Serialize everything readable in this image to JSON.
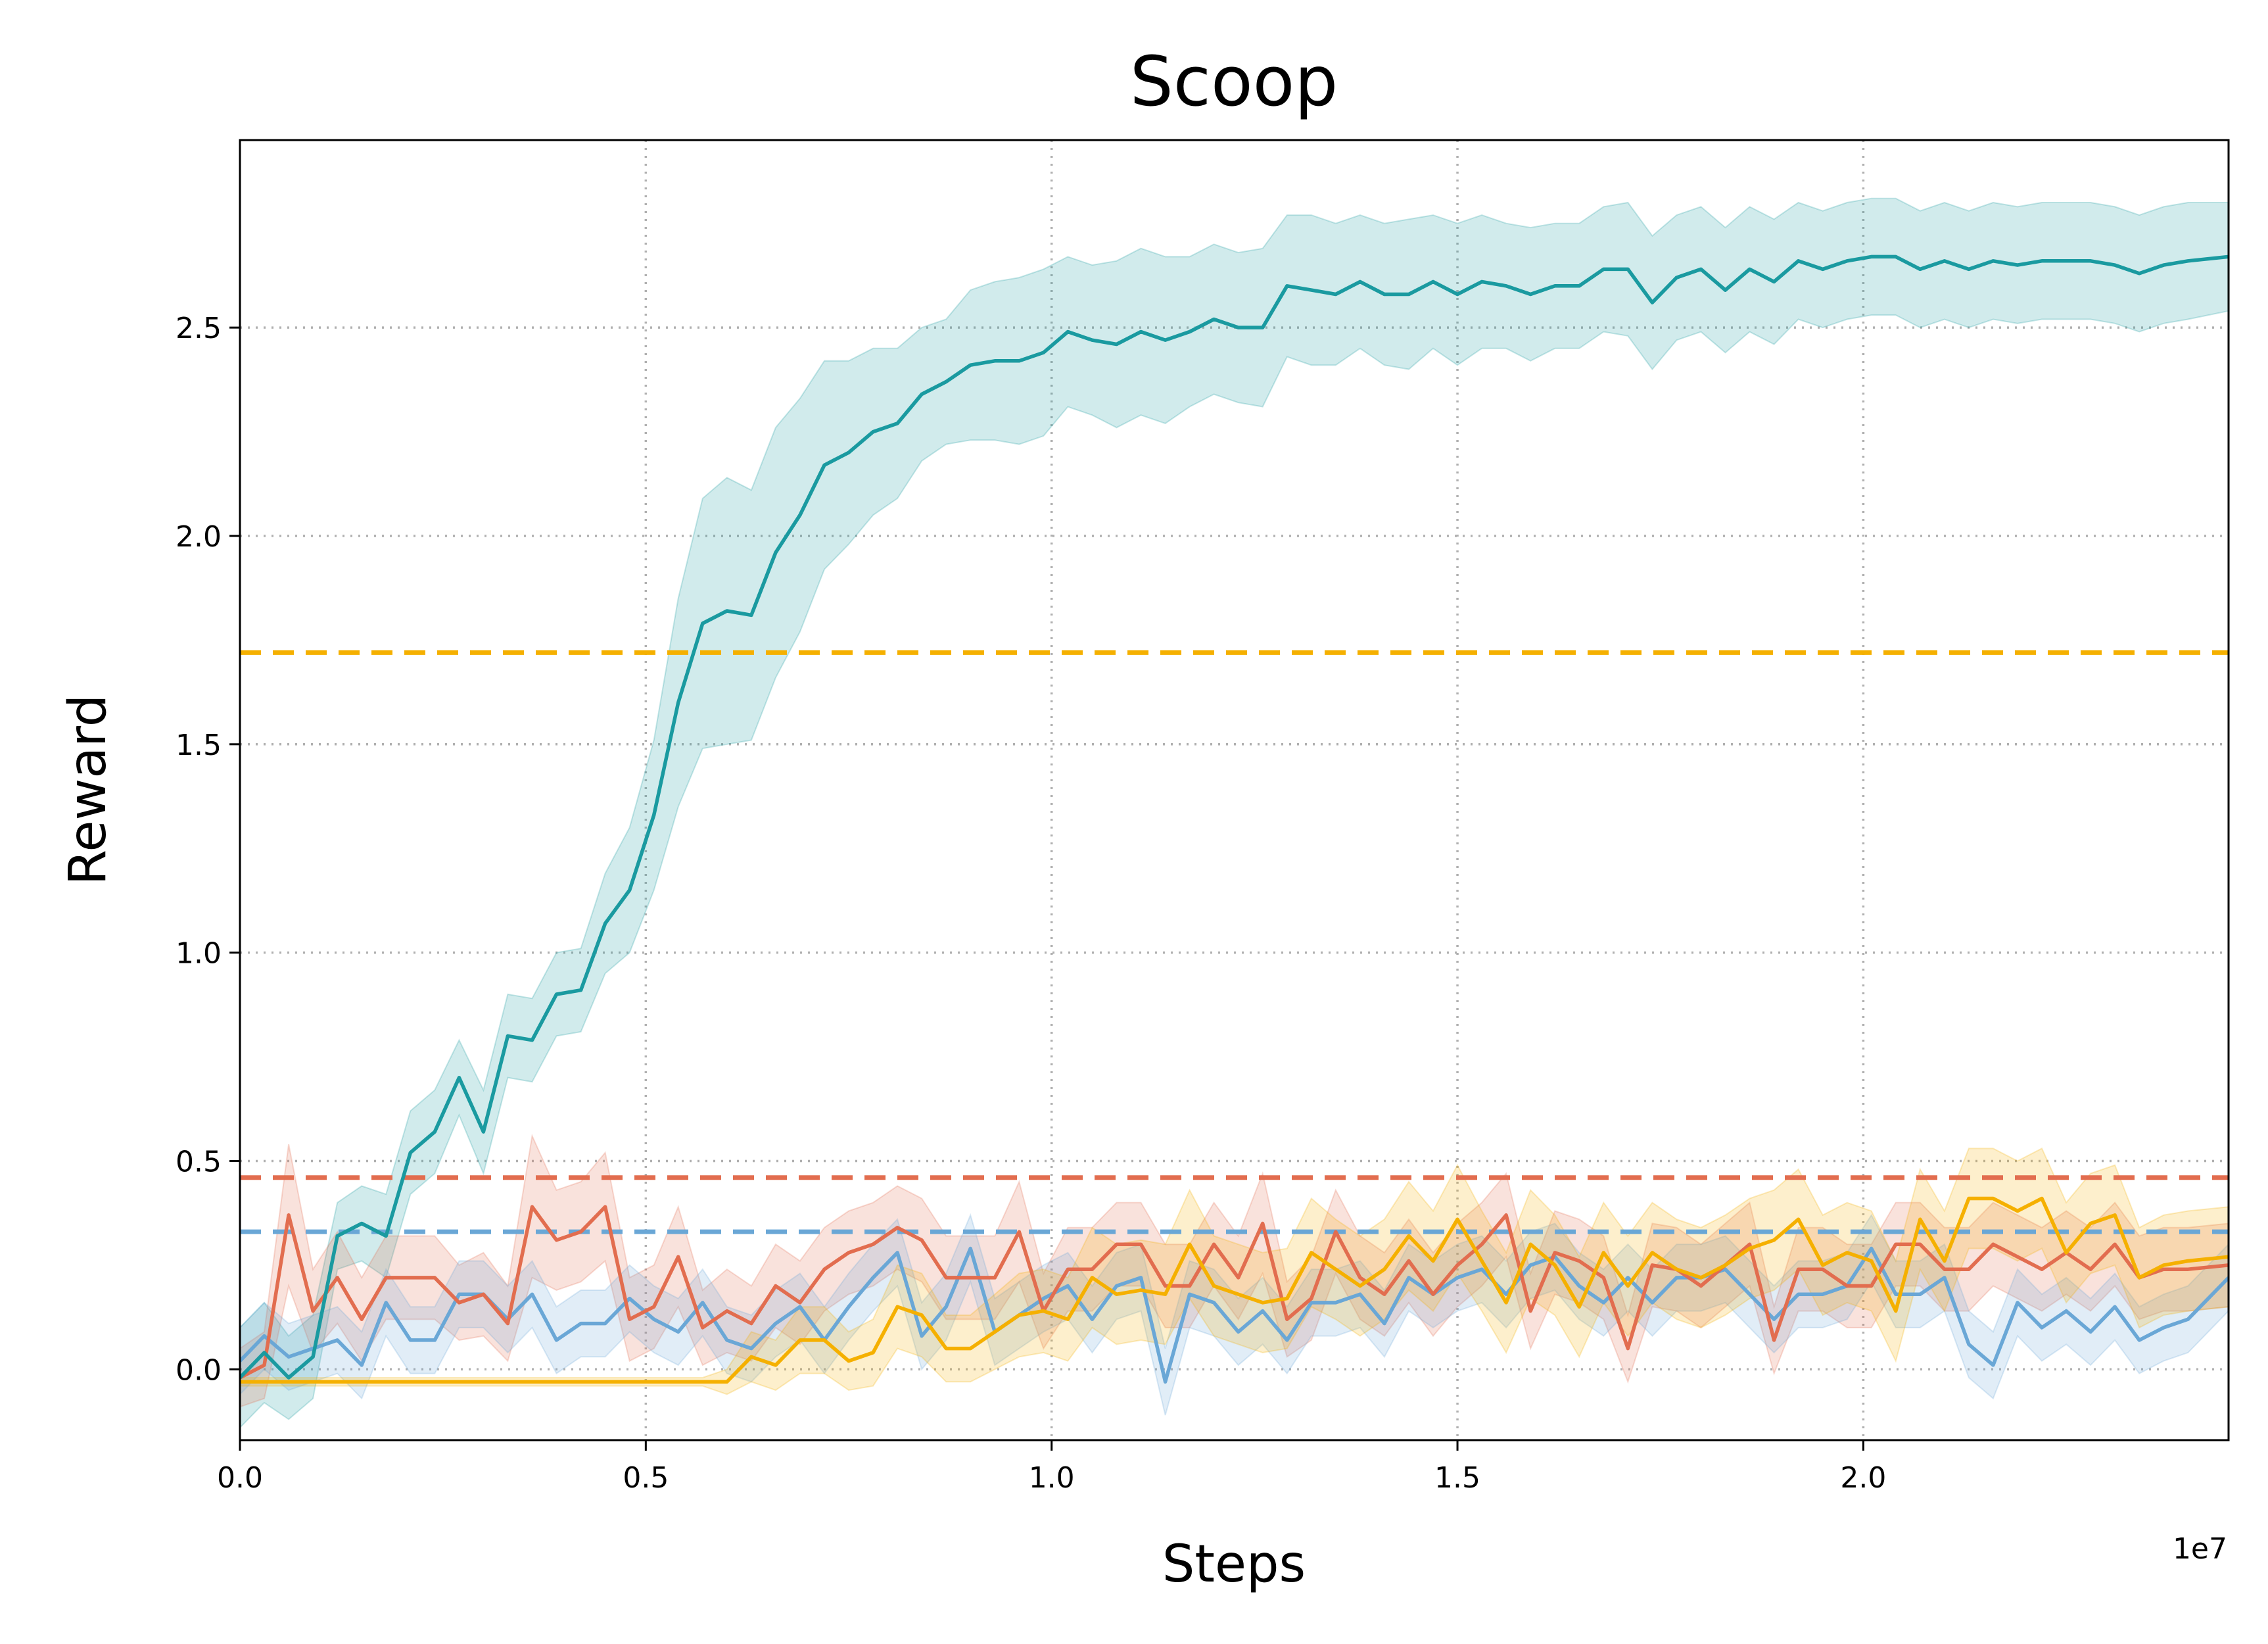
{
  "chart_data": {
    "type": "line",
    "title": "Scoop",
    "xlabel": "Steps",
    "ylabel": "Reward",
    "x_offset_label": "1e7",
    "xlim": [
      0,
      24500000
    ],
    "ylim": [
      -0.17,
      2.95
    ],
    "xticks": [
      0,
      5000000,
      10000000,
      15000000,
      20000000
    ],
    "xtick_labels": [
      "0.0",
      "0.5",
      "1.0",
      "1.5",
      "2.0"
    ],
    "yticks": [
      0.0,
      0.5,
      1.0,
      1.5,
      2.0,
      2.5
    ],
    "ytick_labels": [
      "0.0",
      "0.5",
      "1.0",
      "1.5",
      "2.0",
      "2.5"
    ],
    "grid": true,
    "x": [
      0,
      300000,
      600000,
      900000,
      1200000,
      1500000,
      1800000,
      2100000,
      2400000,
      2700000,
      3000000,
      3300000,
      3600000,
      3900000,
      4200000,
      4500000,
      4800000,
      5100000,
      5400000,
      5700000,
      6000000,
      6300000,
      6600000,
      6900000,
      7200000,
      7500000,
      7800000,
      8100000,
      8400000,
      8700000,
      9000000,
      9300000,
      9600000,
      9900000,
      10200000,
      10500000,
      10800000,
      11100000,
      11400000,
      11700000,
      12000000,
      12300000,
      12600000,
      12900000,
      13200000,
      13500000,
      13800000,
      14100000,
      14400000,
      14700000,
      15000000,
      15300000,
      15600000,
      15900000,
      16200000,
      16500000,
      16800000,
      17100000,
      17400000,
      17700000,
      18000000,
      18300000,
      18600000,
      18900000,
      19200000,
      19500000,
      19800000,
      20100000,
      20400000,
      20700000,
      21000000,
      21300000,
      21600000,
      21900000,
      22200000,
      22500000,
      22800000,
      23100000,
      23400000,
      23700000,
      24000000,
      24500000
    ],
    "series": [
      {
        "color": "#1a9aa0",
        "values": [
          -0.02,
          0.04,
          -0.02,
          0.03,
          0.32,
          0.35,
          0.32,
          0.52,
          0.57,
          0.7,
          0.57,
          0.8,
          0.79,
          0.9,
          0.91,
          1.07,
          1.15,
          1.33,
          1.6,
          1.79,
          1.82,
          1.81,
          1.96,
          2.05,
          2.17,
          2.2,
          2.25,
          2.27,
          2.34,
          2.37,
          2.41,
          2.42,
          2.42,
          2.44,
          2.49,
          2.47,
          2.46,
          2.49,
          2.47,
          2.49,
          2.52,
          2.5,
          2.5,
          2.6,
          2.59,
          2.58,
          2.61,
          2.58,
          2.58,
          2.61,
          2.58,
          2.61,
          2.6,
          2.58,
          2.6,
          2.6,
          2.64,
          2.64,
          2.56,
          2.62,
          2.64,
          2.59,
          2.64,
          2.61,
          2.66,
          2.64,
          2.66,
          2.67,
          2.67,
          2.64,
          2.66,
          2.64,
          2.66,
          2.65,
          2.66,
          2.66,
          2.66,
          2.65,
          2.63,
          2.65,
          2.66,
          2.67
        ],
        "band": [
          0.12,
          0.12,
          0.1,
          0.1,
          0.08,
          0.09,
          0.1,
          0.1,
          0.1,
          0.09,
          0.1,
          0.1,
          0.1,
          0.1,
          0.1,
          0.12,
          0.15,
          0.18,
          0.25,
          0.3,
          0.32,
          0.3,
          0.3,
          0.28,
          0.25,
          0.22,
          0.2,
          0.18,
          0.16,
          0.15,
          0.18,
          0.19,
          0.2,
          0.2,
          0.18,
          0.18,
          0.2,
          0.2,
          0.2,
          0.18,
          0.18,
          0.18,
          0.19,
          0.17,
          0.18,
          0.17,
          0.16,
          0.17,
          0.18,
          0.16,
          0.17,
          0.16,
          0.15,
          0.16,
          0.15,
          0.15,
          0.15,
          0.16,
          0.16,
          0.15,
          0.15,
          0.15,
          0.15,
          0.15,
          0.14,
          0.14,
          0.14,
          0.14,
          0.14,
          0.14,
          0.14,
          0.14,
          0.14,
          0.14,
          0.14,
          0.14,
          0.14,
          0.14,
          0.14,
          0.14,
          0.14,
          0.13
        ]
      },
      {
        "color": "#e26d4f",
        "values": [
          -0.02,
          0.01,
          0.37,
          0.14,
          0.22,
          0.12,
          0.22,
          0.22,
          0.22,
          0.16,
          0.18,
          0.11,
          0.39,
          0.31,
          0.33,
          0.39,
          0.12,
          0.15,
          0.27,
          0.1,
          0.14,
          0.11,
          0.2,
          0.16,
          0.24,
          0.28,
          0.3,
          0.34,
          0.31,
          0.22,
          0.22,
          0.22,
          0.33,
          0.14,
          0.24,
          0.24,
          0.3,
          0.3,
          0.2,
          0.2,
          0.3,
          0.22,
          0.35,
          0.12,
          0.17,
          0.33,
          0.22,
          0.18,
          0.26,
          0.18,
          0.25,
          0.3,
          0.37,
          0.14,
          0.28,
          0.26,
          0.22,
          0.05,
          0.25,
          0.24,
          0.2,
          0.25,
          0.3,
          0.07,
          0.24,
          0.24,
          0.2,
          0.2,
          0.3,
          0.3,
          0.24,
          0.24,
          0.3,
          0.27,
          0.24,
          0.28,
          0.24,
          0.3,
          0.22,
          0.24,
          0.24,
          0.25
        ],
        "band": [
          0.07,
          0.08,
          0.17,
          0.1,
          0.11,
          0.1,
          0.1,
          0.1,
          0.1,
          0.09,
          0.1,
          0.09,
          0.17,
          0.12,
          0.12,
          0.13,
          0.1,
          0.1,
          0.12,
          0.09,
          0.1,
          0.09,
          0.1,
          0.1,
          0.1,
          0.1,
          0.1,
          0.1,
          0.1,
          0.1,
          0.1,
          0.1,
          0.12,
          0.09,
          0.1,
          0.1,
          0.1,
          0.1,
          0.1,
          0.1,
          0.1,
          0.1,
          0.12,
          0.09,
          0.1,
          0.1,
          0.1,
          0.1,
          0.1,
          0.1,
          0.1,
          0.1,
          0.1,
          0.09,
          0.1,
          0.1,
          0.1,
          0.08,
          0.1,
          0.1,
          0.1,
          0.1,
          0.1,
          0.08,
          0.1,
          0.1,
          0.1,
          0.1,
          0.1,
          0.1,
          0.1,
          0.1,
          0.1,
          0.1,
          0.1,
          0.1,
          0.1,
          0.1,
          0.1,
          0.1,
          0.1,
          0.1
        ]
      },
      {
        "color": "#6aa7d6",
        "values": [
          0.02,
          0.08,
          0.03,
          0.05,
          0.07,
          0.01,
          0.16,
          0.07,
          0.07,
          0.18,
          0.18,
          0.12,
          0.18,
          0.07,
          0.11,
          0.11,
          0.17,
          0.12,
          0.09,
          0.16,
          0.07,
          0.05,
          0.11,
          0.15,
          0.07,
          0.15,
          0.22,
          0.28,
          0.08,
          0.15,
          0.29,
          0.09,
          0.13,
          0.17,
          0.2,
          0.12,
          0.2,
          0.22,
          -0.03,
          0.18,
          0.16,
          0.09,
          0.14,
          0.07,
          0.16,
          0.16,
          0.18,
          0.11,
          0.22,
          0.18,
          0.22,
          0.24,
          0.18,
          0.25,
          0.27,
          0.2,
          0.16,
          0.22,
          0.16,
          0.22,
          0.22,
          0.24,
          0.18,
          0.12,
          0.18,
          0.18,
          0.2,
          0.29,
          0.18,
          0.18,
          0.22,
          0.06,
          0.01,
          0.16,
          0.1,
          0.14,
          0.09,
          0.15,
          0.07,
          0.1,
          0.12,
          0.22
        ],
        "band": [
          0.08,
          0.08,
          0.08,
          0.08,
          0.08,
          0.08,
          0.08,
          0.08,
          0.08,
          0.08,
          0.08,
          0.08,
          0.08,
          0.08,
          0.08,
          0.08,
          0.08,
          0.08,
          0.08,
          0.08,
          0.08,
          0.08,
          0.08,
          0.08,
          0.08,
          0.08,
          0.08,
          0.08,
          0.08,
          0.08,
          0.08,
          0.08,
          0.08,
          0.08,
          0.08,
          0.08,
          0.08,
          0.08,
          0.08,
          0.08,
          0.08,
          0.08,
          0.08,
          0.08,
          0.08,
          0.08,
          0.08,
          0.08,
          0.08,
          0.08,
          0.08,
          0.08,
          0.08,
          0.08,
          0.08,
          0.08,
          0.08,
          0.08,
          0.08,
          0.08,
          0.08,
          0.08,
          0.08,
          0.08,
          0.08,
          0.08,
          0.08,
          0.08,
          0.08,
          0.08,
          0.08,
          0.08,
          0.08,
          0.08,
          0.08,
          0.08,
          0.08,
          0.08,
          0.08,
          0.08,
          0.08,
          0.08
        ]
      },
      {
        "color": "#f5b000",
        "values": [
          -0.03,
          -0.03,
          -0.03,
          -0.03,
          -0.03,
          -0.03,
          -0.03,
          -0.03,
          -0.03,
          -0.03,
          -0.03,
          -0.03,
          -0.03,
          -0.03,
          -0.03,
          -0.03,
          -0.03,
          -0.03,
          -0.03,
          -0.03,
          -0.03,
          0.03,
          0.01,
          0.07,
          0.07,
          0.02,
          0.04,
          0.15,
          0.13,
          0.05,
          0.05,
          0.09,
          0.13,
          0.14,
          0.12,
          0.22,
          0.18,
          0.19,
          0.18,
          0.3,
          0.2,
          0.18,
          0.16,
          0.17,
          0.28,
          0.24,
          0.2,
          0.24,
          0.32,
          0.26,
          0.36,
          0.26,
          0.16,
          0.3,
          0.25,
          0.15,
          0.28,
          0.2,
          0.28,
          0.24,
          0.22,
          0.25,
          0.29,
          0.31,
          0.36,
          0.25,
          0.28,
          0.26,
          0.14,
          0.36,
          0.26,
          0.41,
          0.41,
          0.38,
          0.41,
          0.28,
          0.35,
          0.37,
          0.22,
          0.25,
          0.26,
          0.27
        ],
        "band": [
          0.01,
          0.01,
          0.01,
          0.01,
          0.01,
          0.01,
          0.01,
          0.01,
          0.01,
          0.01,
          0.01,
          0.01,
          0.01,
          0.01,
          0.01,
          0.01,
          0.01,
          0.01,
          0.01,
          0.01,
          0.03,
          0.06,
          0.06,
          0.08,
          0.08,
          0.07,
          0.08,
          0.1,
          0.1,
          0.08,
          0.08,
          0.09,
          0.1,
          0.1,
          0.1,
          0.12,
          0.12,
          0.12,
          0.12,
          0.13,
          0.12,
          0.12,
          0.12,
          0.12,
          0.13,
          0.12,
          0.12,
          0.12,
          0.13,
          0.12,
          0.13,
          0.12,
          0.12,
          0.13,
          0.12,
          0.12,
          0.12,
          0.12,
          0.12,
          0.12,
          0.12,
          0.12,
          0.12,
          0.12,
          0.12,
          0.12,
          0.12,
          0.12,
          0.12,
          0.12,
          0.12,
          0.12,
          0.12,
          0.12,
          0.12,
          0.12,
          0.12,
          0.12,
          0.12,
          0.12,
          0.12,
          0.12
        ]
      }
    ],
    "hlines": [
      {
        "y": 1.72,
        "color": "#f5b000",
        "style": "dashed"
      },
      {
        "y": 0.46,
        "color": "#e26d4f",
        "style": "dashed"
      },
      {
        "y": 0.33,
        "color": "#6aa7d6",
        "style": "dashed"
      }
    ]
  }
}
